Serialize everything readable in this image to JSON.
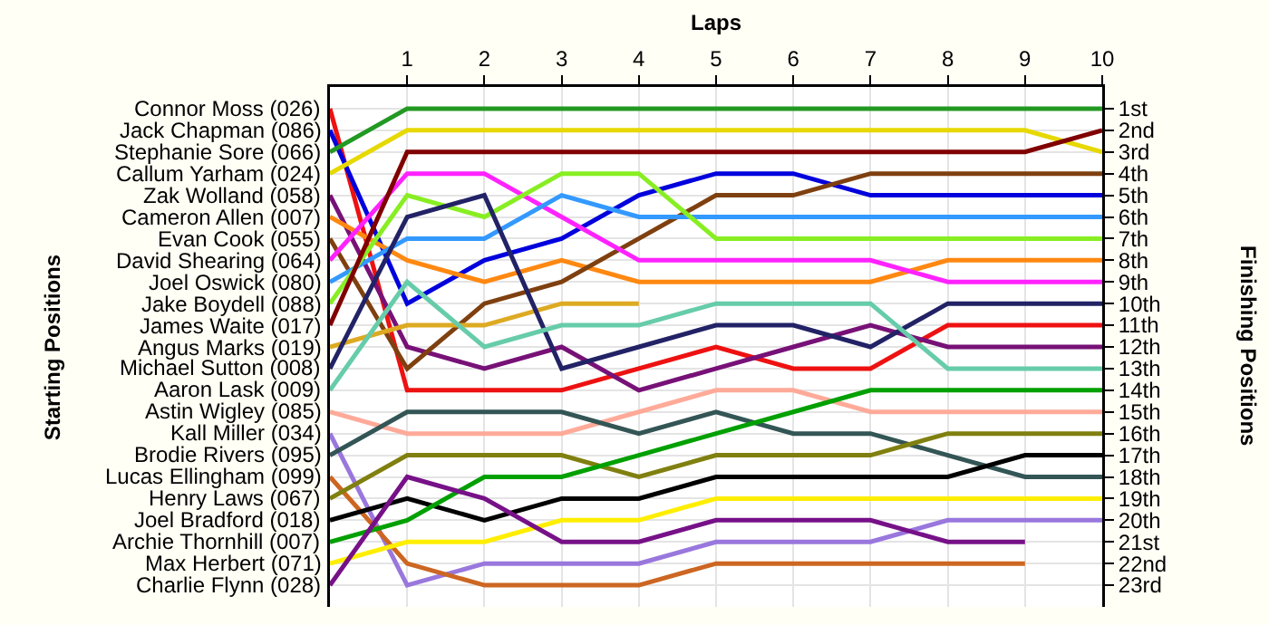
{
  "chart_data": {
    "type": "line",
    "xlabel": "Laps",
    "ylabel": "Finishing Positions",
    "annotations": [
      "Starting Positions"
    ],
    "x": [
      0,
      1,
      2,
      3,
      4,
      5,
      6,
      7,
      8,
      9,
      10
    ],
    "xlim": [
      0,
      10
    ],
    "xticks": [
      1,
      2,
      3,
      4,
      5,
      6,
      7,
      8,
      9,
      10
    ],
    "ylim": [
      24,
      0
    ],
    "yticks": [
      {
        "value": 1,
        "label": "1st"
      },
      {
        "value": 2,
        "label": "2nd"
      },
      {
        "value": 3,
        "label": "3rd"
      },
      {
        "value": 4,
        "label": "4th"
      },
      {
        "value": 5,
        "label": "5th"
      },
      {
        "value": 6,
        "label": "6th"
      },
      {
        "value": 7,
        "label": "7th"
      },
      {
        "value": 8,
        "label": "8th"
      },
      {
        "value": 9,
        "label": "9th"
      },
      {
        "value": 10,
        "label": "10th"
      },
      {
        "value": 11,
        "label": "11th"
      },
      {
        "value": 12,
        "label": "12th"
      },
      {
        "value": 13,
        "label": "13th"
      },
      {
        "value": 14,
        "label": "14th"
      },
      {
        "value": 15,
        "label": "15th"
      },
      {
        "value": 16,
        "label": "16th"
      },
      {
        "value": 17,
        "label": "17th"
      },
      {
        "value": 18,
        "label": "18th"
      },
      {
        "value": 19,
        "label": "19th"
      },
      {
        "value": 20,
        "label": "20th"
      },
      {
        "value": 21,
        "label": "21st"
      },
      {
        "value": 22,
        "label": "22nd"
      },
      {
        "value": 23,
        "label": "23rd"
      }
    ],
    "grid": true,
    "legend": false,
    "marker": "none",
    "line_style": "solid",
    "series": [
      {
        "name": "Connor Moss (026)",
        "color": "#ee1111",
        "values": [
          1,
          14,
          14,
          14,
          13,
          12,
          13,
          13,
          11,
          11,
          11
        ]
      },
      {
        "name": "Jack Chapman (086)",
        "color": "#0000dd",
        "values": [
          2,
          10,
          8,
          7,
          5,
          4,
          4,
          5,
          5,
          5,
          5
        ]
      },
      {
        "name": "Stephanie Sore (066)",
        "color": "#229922",
        "values": [
          3,
          1,
          1,
          1,
          1,
          1,
          1,
          1,
          1,
          1,
          1
        ]
      },
      {
        "name": "Callum Yarham (024)",
        "color": "#e6d800",
        "values": [
          4,
          2,
          2,
          2,
          2,
          2,
          2,
          2,
          2,
          2,
          3
        ]
      },
      {
        "name": "Zak Wolland (058)",
        "color": "#771177",
        "values": [
          5,
          12,
          13,
          12,
          14,
          13,
          12,
          11,
          12,
          12,
          12
        ]
      },
      {
        "name": "Cameron Allen (007)",
        "color": "#ff8811",
        "values": [
          6,
          8,
          9,
          8,
          9,
          9,
          9,
          9,
          8,
          8,
          8
        ]
      },
      {
        "name": "Evan Cook (055)",
        "color": "#7f4010",
        "values": [
          7,
          13,
          10,
          9,
          7,
          5,
          5,
          4,
          4,
          4,
          4
        ]
      },
      {
        "name": "David Shearing (064)",
        "color": "#ff22ff",
        "values": [
          8,
          4,
          4,
          6,
          8,
          8,
          8,
          8,
          9,
          9,
          9
        ]
      },
      {
        "name": "Joel Oswick (080)",
        "color": "#3399ff",
        "values": [
          9,
          7,
          7,
          5,
          6,
          6,
          6,
          6,
          6,
          6,
          6
        ]
      },
      {
        "name": "Jake Boydell (088)",
        "color": "#88ee22",
        "values": [
          10,
          5,
          6,
          4,
          4,
          7,
          7,
          7,
          7,
          7,
          7
        ]
      },
      {
        "name": "James Waite (017)",
        "color": "#800000",
        "values": [
          11,
          3,
          3,
          3,
          3,
          3,
          3,
          3,
          3,
          3,
          2
        ]
      },
      {
        "name": "Angus Marks (019)",
        "color": "#ddaa22",
        "values": [
          12,
          11,
          11,
          10,
          10,
          null,
          null,
          null,
          null,
          null,
          null
        ]
      },
      {
        "name": "Michael Sutton (008)",
        "color": "#222266",
        "values": [
          13,
          6,
          5,
          13,
          12,
          11,
          11,
          12,
          10,
          10,
          10
        ]
      },
      {
        "name": "Aaron Lask (009)",
        "color": "#66ccaa",
        "values": [
          14,
          9,
          12,
          11,
          11,
          10,
          10,
          10,
          13,
          13,
          13
        ]
      },
      {
        "name": "Astin Wigley (085)",
        "color": "#ffaa99",
        "values": [
          15,
          16,
          16,
          16,
          15,
          14,
          14,
          15,
          15,
          15,
          15
        ]
      },
      {
        "name": "Kall Miller (034)",
        "color": "#9977dd",
        "values": [
          16,
          23,
          22,
          22,
          22,
          21,
          21,
          21,
          20,
          20,
          20
        ]
      },
      {
        "name": "Brodie Rivers (095)",
        "color": "#335555",
        "values": [
          17,
          15,
          15,
          15,
          16,
          15,
          16,
          16,
          17,
          18,
          18
        ]
      },
      {
        "name": "Lucas Ellingham (099)",
        "color": "#cc6622",
        "values": [
          18,
          22,
          23,
          23,
          23,
          22,
          22,
          22,
          22,
          22,
          null
        ]
      },
      {
        "name": "Henry Laws (067)",
        "color": "#808010",
        "values": [
          19,
          17,
          17,
          17,
          18,
          17,
          17,
          17,
          16,
          16,
          16
        ]
      },
      {
        "name": "Joel Bradford (018)",
        "color": "#000000",
        "values": [
          20,
          19,
          20,
          19,
          19,
          18,
          18,
          18,
          18,
          17,
          17
        ]
      },
      {
        "name": "Archie Thornhill (007)",
        "color": "#00a000",
        "values": [
          21,
          20,
          18,
          18,
          17,
          16,
          15,
          14,
          14,
          14,
          14
        ]
      },
      {
        "name": "Max Herbert (071)",
        "color": "#ffee00",
        "values": [
          22,
          21,
          21,
          20,
          20,
          19,
          19,
          19,
          19,
          19,
          19
        ]
      },
      {
        "name": "Charlie Flynn (028)",
        "color": "#771188",
        "values": [
          23,
          18,
          19,
          21,
          21,
          20,
          20,
          20,
          21,
          21,
          null
        ]
      }
    ]
  }
}
